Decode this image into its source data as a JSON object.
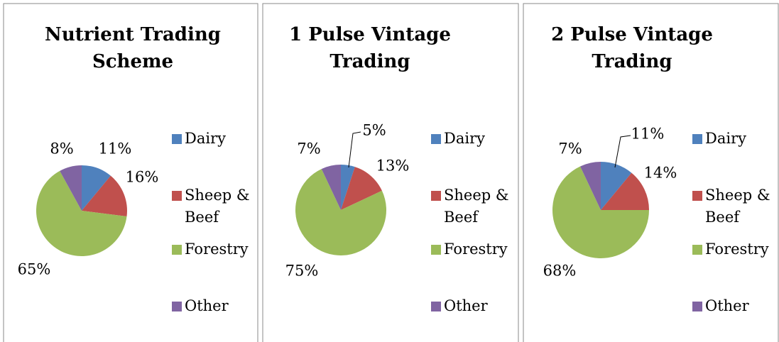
{
  "chart_data": [
    {
      "type": "pie",
      "title": "Nutrient Trading Scheme",
      "categories": [
        "Dairy",
        "Sheep & Beef",
        "Forestry",
        "Other"
      ],
      "values": [
        11,
        16,
        65,
        8
      ],
      "colors": [
        "#4f81bd",
        "#c0504d",
        "#9bbb59",
        "#8064a2"
      ],
      "legend": "right"
    },
    {
      "type": "pie",
      "title": "1 Pulse Vintage Trading",
      "categories": [
        "Dairy",
        "Sheep & Beef",
        "Forestry",
        "Other"
      ],
      "values": [
        5,
        13,
        75,
        7
      ],
      "colors": [
        "#4f81bd",
        "#c0504d",
        "#9bbb59",
        "#8064a2"
      ],
      "legend": "right"
    },
    {
      "type": "pie",
      "title": "2 Pulse Vintage Trading",
      "categories": [
        "Dairy",
        "Sheep & Beef",
        "Forestry",
        "Other"
      ],
      "values": [
        11,
        14,
        68,
        7
      ],
      "colors": [
        "#4f81bd",
        "#c0504d",
        "#9bbb59",
        "#8064a2"
      ],
      "legend": "right"
    }
  ]
}
